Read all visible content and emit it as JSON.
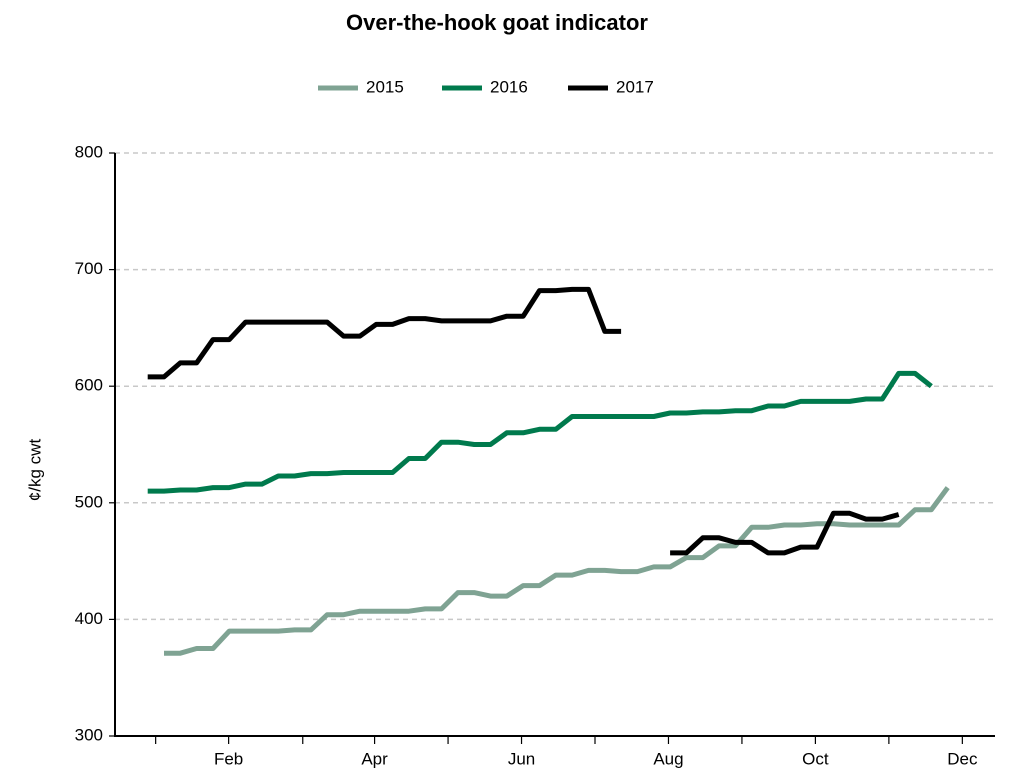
{
  "chart_data": {
    "type": "line",
    "title": "Over-the-hook goat indicator",
    "y_label": "¢/kg cwt",
    "x": [
      0,
      1,
      2,
      3,
      4,
      5,
      6,
      7,
      8,
      9,
      10,
      11,
      12,
      13,
      14,
      15,
      16,
      17,
      18,
      19,
      20,
      21,
      22,
      23,
      24,
      25,
      26,
      27,
      28,
      29,
      30,
      31,
      32,
      33,
      34,
      35,
      36,
      37,
      38,
      39,
      40,
      41,
      42,
      43,
      44,
      45,
      46,
      47,
      48,
      49
    ],
    "xlim": [
      -2,
      51.9
    ],
    "xticks": [
      {
        "value": 4.96,
        "label": "Feb"
      },
      {
        "value": 13.9,
        "label": "Apr"
      },
      {
        "value": 22.9,
        "label": "Jun"
      },
      {
        "value": 31.9,
        "label": "Aug"
      },
      {
        "value": 40.9,
        "label": "Oct"
      },
      {
        "value": 49.9,
        "label": "Dec"
      }
    ],
    "xminorticks": [
      0.49,
      9.5,
      18.4,
      27.4,
      36.4,
      45.4
    ],
    "ylim": [
      300,
      800
    ],
    "yticks": [
      300,
      400,
      500,
      600,
      700,
      800
    ],
    "grid": true,
    "legend": "top",
    "series": [
      {
        "name": "2015",
        "color": "#7fa393",
        "values": [
          null,
          371,
          371,
          375,
          375,
          390,
          390,
          390,
          390,
          391,
          391,
          404,
          404,
          407,
          407,
          407,
          407,
          409,
          409,
          423,
          423,
          420,
          420,
          429,
          429,
          438,
          438,
          442,
          442,
          441,
          441,
          445,
          445,
          453,
          453,
          463,
          463,
          479,
          479,
          481,
          481,
          482,
          482,
          481,
          481,
          481,
          481,
          494,
          494,
          513
        ]
      },
      {
        "name": "2016",
        "color": "#007a4d",
        "values": [
          510,
          510,
          511,
          511,
          513,
          513,
          516,
          516,
          523,
          523,
          525,
          525,
          526,
          526,
          526,
          526,
          538,
          538,
          552,
          552,
          550,
          550,
          560,
          560,
          563,
          563,
          574,
          574,
          574,
          574,
          574,
          574,
          577,
          577,
          578,
          578,
          579,
          579,
          583,
          583,
          587,
          587,
          587,
          587,
          589,
          589,
          611,
          611,
          600,
          null
        ]
      },
      {
        "name": "2017",
        "color": "#000000",
        "values": [
          608,
          608,
          620,
          620,
          640,
          640,
          655,
          655,
          655,
          655,
          655,
          655,
          643,
          643,
          653,
          653,
          658,
          658,
          656,
          656,
          656,
          656,
          660,
          660,
          682,
          682,
          683,
          683,
          647,
          647,
          null,
          null,
          457,
          457,
          470,
          470,
          466,
          466,
          457,
          457,
          462,
          462,
          491,
          491,
          486,
          486,
          490,
          null,
          null,
          null
        ]
      }
    ]
  }
}
